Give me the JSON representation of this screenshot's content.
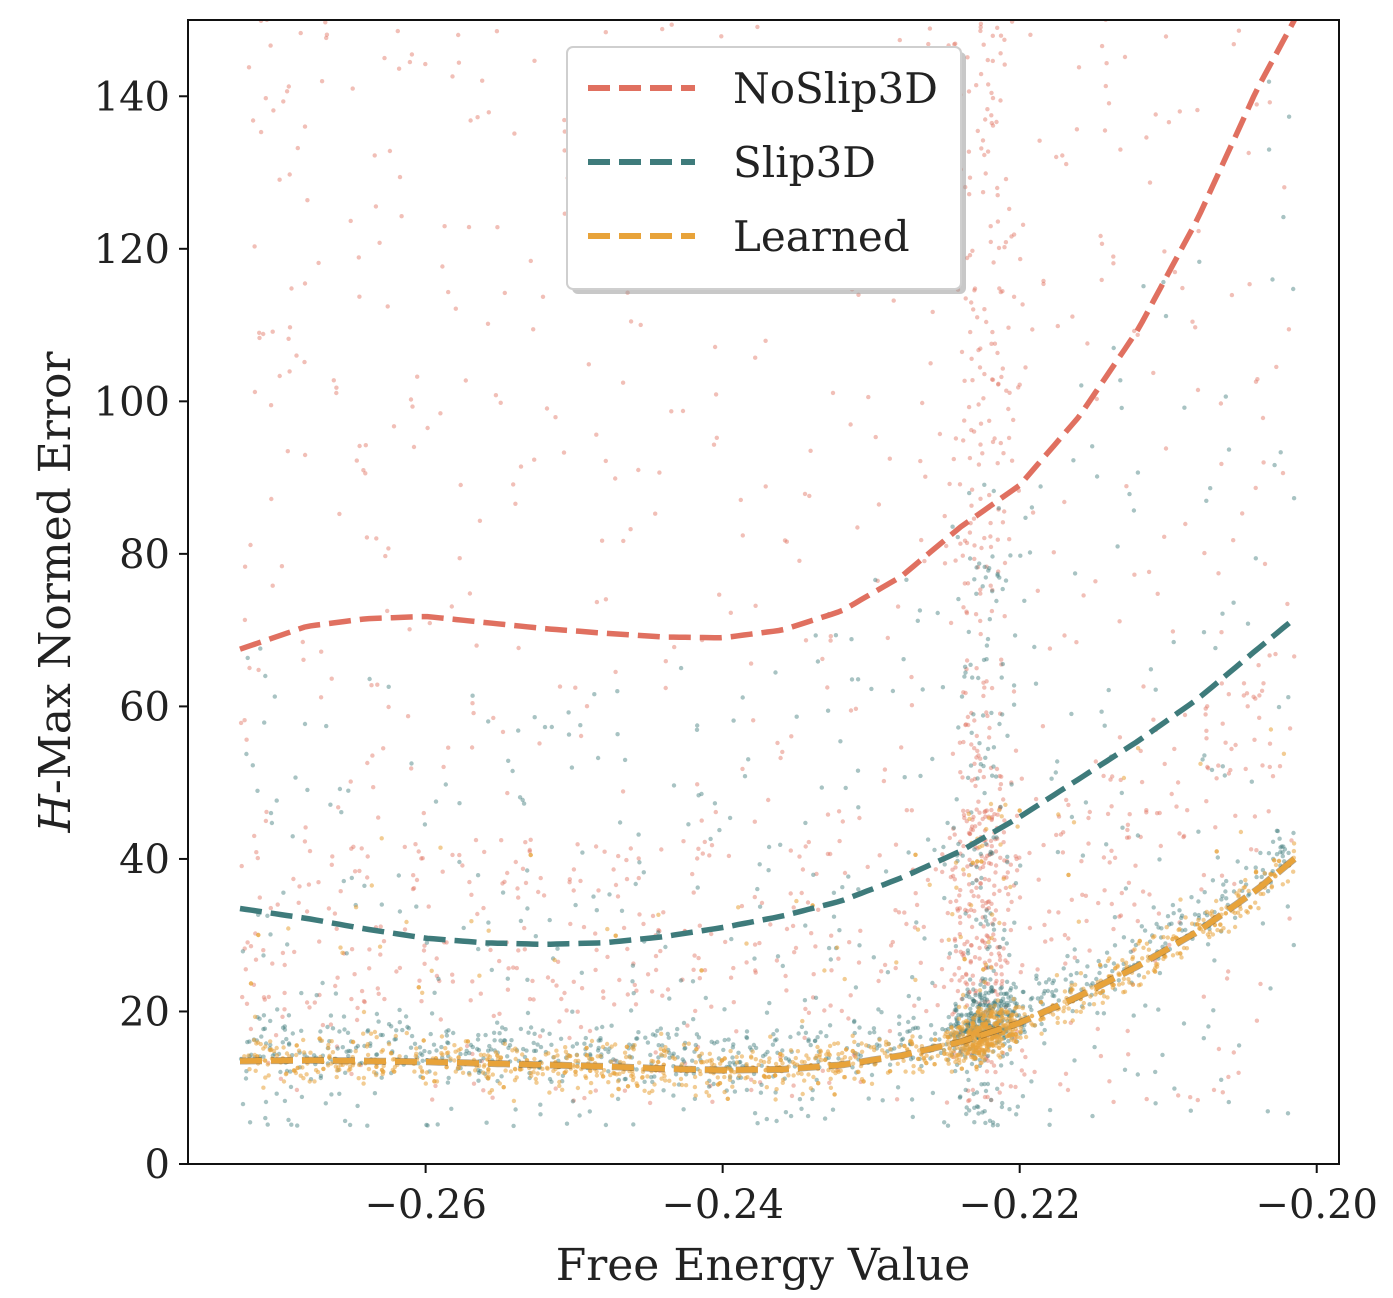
{
  "chart_data": {
    "type": "scatter",
    "title": "",
    "xlabel": "Free Energy Value",
    "ylabel_prefix": "H",
    "ylabel_rest": "-Max Normed Error",
    "xlim": [
      -0.276,
      -0.1985
    ],
    "ylim": [
      0,
      150
    ],
    "xticks": [
      -0.26,
      -0.24,
      -0.22,
      -0.2
    ],
    "xtick_labels": [
      "−0.26",
      "−0.24",
      "−0.22",
      "−0.20"
    ],
    "yticks": [
      0,
      20,
      40,
      60,
      80,
      100,
      120,
      140
    ],
    "ytick_labels": [
      "0",
      "20",
      "40",
      "60",
      "80",
      "100",
      "120",
      "140"
    ],
    "grid": false,
    "legend_position": "top-center",
    "series": [
      {
        "name": "NoSlip3D",
        "color": "#e07060",
        "fit_x": [
          -0.2725,
          -0.268,
          -0.264,
          -0.26,
          -0.256,
          -0.252,
          -0.248,
          -0.244,
          -0.24,
          -0.236,
          -0.232,
          -0.228,
          -0.224,
          -0.22,
          -0.216,
          -0.212,
          -0.208,
          -0.204,
          -0.2015
        ],
        "fit_y": [
          67.5,
          70.5,
          71.5,
          71.8,
          71.0,
          70.2,
          69.6,
          69.1,
          69.0,
          70.0,
          72.5,
          77.0,
          83.5,
          89.0,
          98.0,
          109.5,
          124.0,
          141.0,
          150.0
        ],
        "scatter_y_range_low": [
          8,
          35
        ],
        "scatter_y_range_high": [
          35,
          150
        ]
      },
      {
        "name": "Slip3D",
        "color": "#3e7b7b",
        "fit_x": [
          -0.2725,
          -0.268,
          -0.264,
          -0.26,
          -0.256,
          -0.252,
          -0.248,
          -0.244,
          -0.24,
          -0.236,
          -0.232,
          -0.228,
          -0.224,
          -0.22,
          -0.216,
          -0.212,
          -0.208,
          -0.204,
          -0.2015
        ],
        "fit_y": [
          33.5,
          32.2,
          30.8,
          29.6,
          29.0,
          28.8,
          29.0,
          29.8,
          31.0,
          32.5,
          34.5,
          37.5,
          41.0,
          45.5,
          50.5,
          55.5,
          61.0,
          67.5,
          71.5
        ],
        "scatter_y_range_low": [
          5,
          30
        ],
        "scatter_y_range_high": [
          30,
          110
        ]
      },
      {
        "name": "Learned",
        "color": "#e8a33a",
        "fit_x": [
          -0.2725,
          -0.268,
          -0.264,
          -0.26,
          -0.256,
          -0.252,
          -0.248,
          -0.244,
          -0.24,
          -0.236,
          -0.232,
          -0.228,
          -0.224,
          -0.22,
          -0.216,
          -0.212,
          -0.208,
          -0.204,
          -0.2015
        ],
        "fit_y": [
          13.5,
          13.6,
          13.5,
          13.4,
          13.2,
          13.0,
          12.8,
          12.5,
          12.3,
          12.4,
          13.0,
          14.2,
          16.0,
          18.5,
          22.0,
          26.0,
          30.5,
          36.0,
          40.0
        ],
        "scatter_y_range_low": [
          5,
          25
        ],
        "scatter_y_range_high": [
          25,
          60
        ]
      }
    ]
  }
}
